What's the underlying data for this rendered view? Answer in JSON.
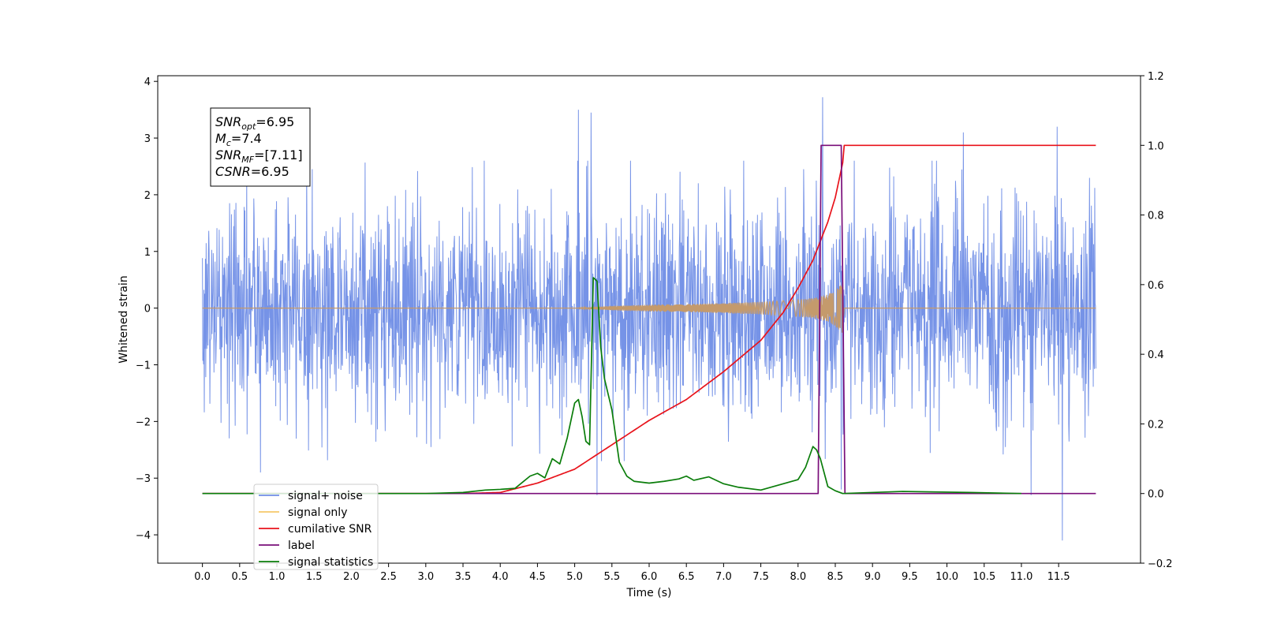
{
  "chart_data": {
    "type": "line",
    "title": "",
    "xlabel": "Time (s)",
    "ylabel": "Whitened strain",
    "y2label": "",
    "xlim": [
      -0.6,
      12.6
    ],
    "ylim": [
      -4.5,
      4.1
    ],
    "y2lim": [
      -0.2,
      1.2
    ],
    "x_ticks": [
      "0.0",
      "0.5",
      "1.0",
      "1.5",
      "2.0",
      "2.5",
      "3.0",
      "3.5",
      "4.0",
      "4.5",
      "5.0",
      "5.5",
      "6.0",
      "6.5",
      "7.0",
      "7.5",
      "8.0",
      "8.5",
      "9.0",
      "9.5",
      "10.0",
      "10.5",
      "11.0",
      "11.5"
    ],
    "y_ticks": [
      "−4",
      "−3",
      "−2",
      "−1",
      "0",
      "1",
      "2",
      "3",
      "4"
    ],
    "y2_ticks": [
      "−0.2",
      "0.0",
      "0.2",
      "0.4",
      "0.6",
      "0.8",
      "1.0",
      "1.2"
    ],
    "grid": false,
    "legend_position": "lower-left",
    "annotation": {
      "lines": [
        {
          "main": "SNR",
          "sub": "opt",
          "rest": "=6.95"
        },
        {
          "main": "M",
          "sub": "c",
          "rest": "=7.4"
        },
        {
          "main": "SNR",
          "sub": "MF",
          "rest": "=[7.11]"
        },
        {
          "main": "CSNR",
          "sub": "",
          "rest": "=6.95"
        }
      ]
    },
    "series": [
      {
        "name": "signal+ noise",
        "color": "#6f8de6",
        "axis": "left",
        "noise_sigma": 0.95,
        "x_start": 0.0,
        "x_end": 12.0,
        "spikes": [
          [
            5.05,
            3.5
          ],
          [
            5.22,
            3.45
          ],
          [
            8.33,
            3.72
          ],
          [
            11.48,
            3.2
          ],
          [
            10.22,
            3.1
          ],
          [
            0.78,
            -2.9
          ],
          [
            5.3,
            -3.3
          ],
          [
            11.13,
            -3.3
          ],
          [
            11.55,
            -4.1
          ],
          [
            8.58,
            -3.2
          ]
        ]
      },
      {
        "name": "signal only",
        "color": "#c49a6c",
        "axis": "left",
        "x": [
          0.0,
          5.0,
          5.5,
          6.0,
          6.5,
          7.0,
          7.5,
          7.8,
          8.0,
          8.2,
          8.4,
          8.5,
          8.6,
          8.62,
          12.0
        ],
        "amplitude": [
          0.0,
          0.0,
          0.04,
          0.06,
          0.07,
          0.09,
          0.11,
          0.13,
          0.15,
          0.18,
          0.24,
          0.32,
          0.45,
          0.0,
          0.0
        ]
      },
      {
        "name": "cumilative SNR",
        "color": "#e8131b",
        "axis": "right",
        "x": [
          0.0,
          3.5,
          4.0,
          4.5,
          5.0,
          5.5,
          6.0,
          6.5,
          7.0,
          7.5,
          7.8,
          8.0,
          8.2,
          8.4,
          8.5,
          8.6,
          8.62,
          12.0
        ],
        "y": [
          0.0,
          0.0,
          0.003,
          0.03,
          0.07,
          0.14,
          0.21,
          0.27,
          0.35,
          0.44,
          0.52,
          0.59,
          0.67,
          0.78,
          0.85,
          0.95,
          1.0,
          1.0
        ]
      },
      {
        "name": "label",
        "color": "#7a0e7a",
        "axis": "right",
        "x": [
          0.0,
          8.27,
          8.31,
          8.58,
          8.63,
          12.0
        ],
        "y": [
          0.0,
          0.0,
          1.0,
          1.0,
          0.0,
          0.0
        ]
      },
      {
        "name": "signal statistics",
        "color": "#0a7d0a",
        "axis": "right",
        "x": [
          0.0,
          3.0,
          3.5,
          3.8,
          4.0,
          4.2,
          4.4,
          4.5,
          4.6,
          4.7,
          4.8,
          4.9,
          5.0,
          5.05,
          5.1,
          5.15,
          5.2,
          5.25,
          5.3,
          5.35,
          5.4,
          5.5,
          5.6,
          5.7,
          5.8,
          6.0,
          6.2,
          6.4,
          6.5,
          6.6,
          6.8,
          7.0,
          7.2,
          7.5,
          8.0,
          8.1,
          8.2,
          8.25,
          8.3,
          8.4,
          8.5,
          8.6,
          9.4,
          10.3,
          11.0
        ],
        "y": [
          0.0,
          0.0,
          0.003,
          0.01,
          0.012,
          0.015,
          0.05,
          0.058,
          0.045,
          0.1,
          0.085,
          0.16,
          0.26,
          0.27,
          0.22,
          0.15,
          0.14,
          0.62,
          0.61,
          0.42,
          0.33,
          0.24,
          0.09,
          0.05,
          0.035,
          0.03,
          0.035,
          0.042,
          0.05,
          0.038,
          0.048,
          0.028,
          0.018,
          0.01,
          0.04,
          0.075,
          0.135,
          0.125,
          0.1,
          0.02,
          0.008,
          0.0,
          0.006,
          0.003,
          0.0
        ]
      }
    ],
    "legend": [
      {
        "label": "signal+ noise",
        "color": "#6f8de6"
      },
      {
        "label": "signal only",
        "color": "#f5c86a"
      },
      {
        "label": "cumilative SNR",
        "color": "#e8131b"
      },
      {
        "label": "label",
        "color": "#7a0e7a"
      },
      {
        "label": "signal statistics",
        "color": "#0a7d0a"
      }
    ]
  }
}
